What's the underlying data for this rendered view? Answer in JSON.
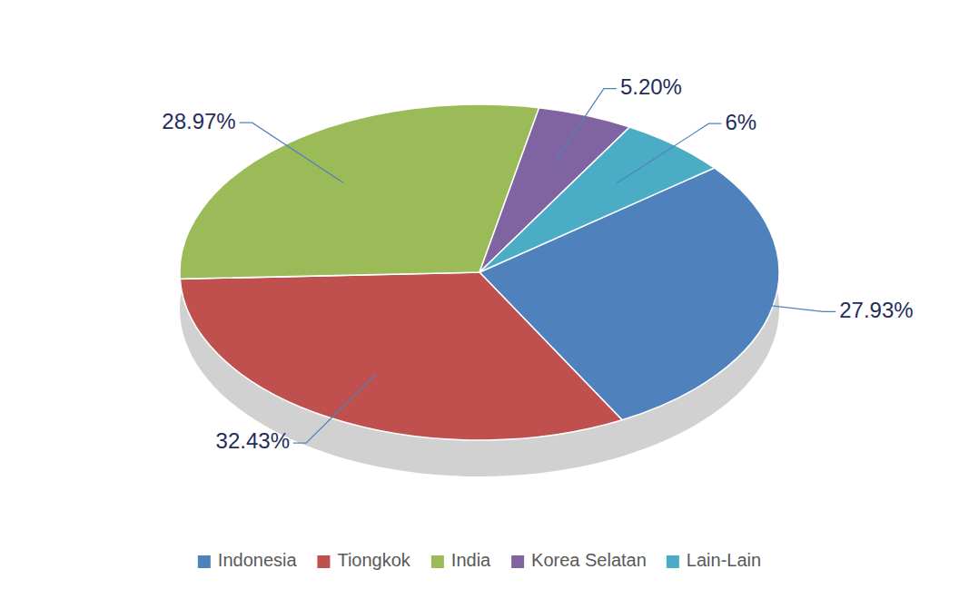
{
  "chart_data": {
    "type": "pie",
    "categories": [
      "Indonesia",
      "Tiongkok",
      "India",
      "Korea Selatan",
      "Lain-Lain"
    ],
    "values": [
      27.93,
      32.43,
      28.97,
      5.2,
      6
    ],
    "value_labels": [
      "27.93%",
      "32.43%",
      "28.97%",
      "5.20%",
      "6%"
    ],
    "colors": [
      "#4f81bd",
      "#c0504d",
      "#9bbb59",
      "#8064a2",
      "#4bacc6"
    ],
    "data_labels": true,
    "legend": "bottom"
  }
}
